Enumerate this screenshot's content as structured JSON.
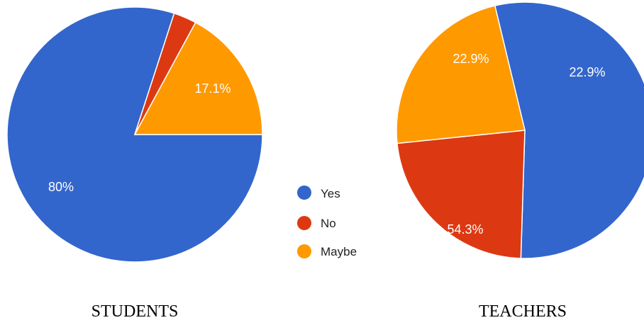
{
  "chart_data": [
    {
      "type": "pie",
      "caption": "STUDENTS",
      "slices": [
        {
          "category": "Yes",
          "value": 80,
          "label": "80%"
        },
        {
          "category": "No",
          "value": 2.9,
          "label": ""
        },
        {
          "category": "Maybe",
          "value": 17.1,
          "label": "17.1%"
        }
      ]
    },
    {
      "type": "pie",
      "caption": "TEACHERS",
      "slices": [
        {
          "category": "Yes",
          "value": 54.3,
          "label": "54.3%"
        },
        {
          "category": "No",
          "value": 22.9,
          "label": "22.9%"
        },
        {
          "category": "Maybe",
          "value": 22.9,
          "label": "22.9%"
        }
      ]
    }
  ],
  "legend": {
    "placement": "center",
    "items": [
      {
        "label": "Yes",
        "color": "#3366cc"
      },
      {
        "label": "No",
        "color": "#dc3912"
      },
      {
        "label": "Maybe",
        "color": "#ff9900"
      }
    ]
  }
}
